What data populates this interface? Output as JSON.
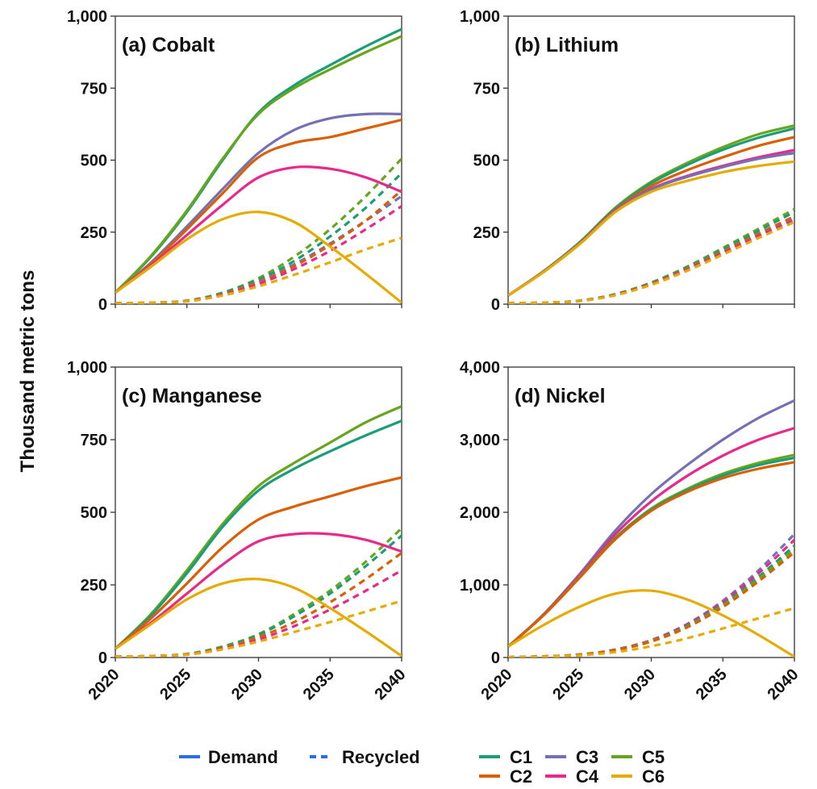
{
  "figure": {
    "ylabel": "Thousand metric tons"
  },
  "legend": {
    "styles": [
      {
        "label": "Demand",
        "dash": "solid"
      },
      {
        "label": "Recycled",
        "dash": "dashed"
      }
    ],
    "scenarios": [
      {
        "label": "C1",
        "color": "#1b9e77"
      },
      {
        "label": "C2",
        "color": "#d95f02"
      },
      {
        "label": "C3",
        "color": "#7570b3"
      },
      {
        "label": "C4",
        "color": "#e7298a"
      },
      {
        "label": "C5",
        "color": "#66a61e"
      },
      {
        "label": "C6",
        "color": "#e6ab02"
      }
    ],
    "style_color": "#2b6de8"
  },
  "chart_data": [
    {
      "type": "line",
      "title": "(a) Cobalt",
      "xlabel": "",
      "ylabel": "Thousand metric tons",
      "xlim": [
        2020,
        2040
      ],
      "ylim": [
        0,
        1000
      ],
      "xticks": [
        "2020",
        "2025",
        "2030",
        "2035",
        "2040"
      ],
      "yticks": [
        "0",
        "250",
        "500",
        "750",
        "1,000"
      ],
      "x": [
        2020,
        2022.5,
        2025,
        2027.5,
        2030,
        2032.5,
        2035,
        2037.5,
        2040
      ],
      "series": [
        {
          "name": "C1",
          "kind": "Demand",
          "values": [
            40,
            165,
            320,
            500,
            665,
            760,
            830,
            895,
            955
          ]
        },
        {
          "name": "C5",
          "kind": "Demand",
          "values": [
            40,
            168,
            325,
            505,
            660,
            750,
            815,
            875,
            930
          ]
        },
        {
          "name": "C3",
          "kind": "Demand",
          "values": [
            40,
            145,
            270,
            400,
            525,
            605,
            645,
            660,
            660
          ]
        },
        {
          "name": "C2",
          "kind": "Demand",
          "values": [
            40,
            140,
            260,
            385,
            510,
            560,
            580,
            610,
            640
          ]
        },
        {
          "name": "C4",
          "kind": "Demand",
          "values": [
            40,
            135,
            240,
            345,
            440,
            475,
            470,
            440,
            390
          ]
        },
        {
          "name": "C6",
          "kind": "Demand",
          "values": [
            40,
            130,
            225,
            295,
            320,
            285,
            200,
            105,
            5
          ]
        },
        {
          "name": "C5",
          "kind": "Recycled",
          "values": [
            3,
            5,
            12,
            40,
            90,
            165,
            260,
            375,
            505
          ]
        },
        {
          "name": "C1",
          "kind": "Recycled",
          "values": [
            3,
            5,
            12,
            38,
            85,
            150,
            235,
            335,
            455
          ]
        },
        {
          "name": "C3",
          "kind": "Recycled",
          "values": [
            3,
            5,
            11,
            35,
            78,
            138,
            210,
            290,
            375
          ]
        },
        {
          "name": "C2",
          "kind": "Recycled",
          "values": [
            3,
            5,
            11,
            34,
            76,
            132,
            205,
            290,
            395
          ]
        },
        {
          "name": "C4",
          "kind": "Recycled",
          "values": [
            3,
            5,
            10,
            32,
            70,
            122,
            185,
            260,
            340
          ]
        },
        {
          "name": "C6",
          "kind": "Recycled",
          "values": [
            3,
            5,
            10,
            30,
            62,
            102,
            145,
            190,
            230
          ]
        }
      ]
    },
    {
      "type": "line",
      "title": "(b) Lithium",
      "xlabel": "",
      "ylabel": "",
      "xlim": [
        2020,
        2040
      ],
      "ylim": [
        0,
        1000
      ],
      "xticks": [
        "2020",
        "2025",
        "2030",
        "2035",
        "2040"
      ],
      "yticks": [
        "0",
        "250",
        "500",
        "750",
        "1,000"
      ],
      "x": [
        2020,
        2022.5,
        2025,
        2027.5,
        2030,
        2032.5,
        2035,
        2037.5,
        2040
      ],
      "series": [
        {
          "name": "C5",
          "kind": "Demand",
          "values": [
            30,
            115,
            215,
            335,
            425,
            490,
            545,
            590,
            620
          ]
        },
        {
          "name": "C1",
          "kind": "Demand",
          "values": [
            30,
            115,
            214,
            332,
            420,
            483,
            536,
            578,
            610
          ]
        },
        {
          "name": "C2",
          "kind": "Demand",
          "values": [
            30,
            114,
            212,
            328,
            410,
            465,
            510,
            550,
            580
          ]
        },
        {
          "name": "C4",
          "kind": "Demand",
          "values": [
            30,
            113,
            210,
            325,
            400,
            445,
            480,
            510,
            535
          ]
        },
        {
          "name": "C3",
          "kind": "Demand",
          "values": [
            30,
            113,
            210,
            323,
            398,
            442,
            476,
            505,
            525
          ]
        },
        {
          "name": "C6",
          "kind": "Demand",
          "values": [
            30,
            112,
            208,
            320,
            390,
            428,
            458,
            480,
            495
          ]
        },
        {
          "name": "C5",
          "kind": "Recycled",
          "values": [
            3,
            5,
            12,
            35,
            75,
            130,
            195,
            262,
            330
          ]
        },
        {
          "name": "C1",
          "kind": "Recycled",
          "values": [
            3,
            5,
            12,
            34,
            73,
            127,
            190,
            255,
            320
          ]
        },
        {
          "name": "C2",
          "kind": "Recycled",
          "values": [
            3,
            5,
            11,
            33,
            71,
            123,
            183,
            245,
            305
          ]
        },
        {
          "name": "C3",
          "kind": "Recycled",
          "values": [
            3,
            5,
            11,
            32,
            69,
            120,
            178,
            238,
            295
          ]
        },
        {
          "name": "C4",
          "kind": "Recycled",
          "values": [
            3,
            5,
            11,
            32,
            69,
            119,
            177,
            236,
            292
          ]
        },
        {
          "name": "C6",
          "kind": "Recycled",
          "values": [
            3,
            5,
            11,
            31,
            67,
            116,
            172,
            230,
            285
          ]
        }
      ]
    },
    {
      "type": "line",
      "title": "(c) Manganese",
      "xlabel": "",
      "ylabel": "",
      "xlim": [
        2020,
        2040
      ],
      "ylim": [
        0,
        1000
      ],
      "xticks": [
        "2020",
        "2025",
        "2030",
        "2035",
        "2040"
      ],
      "yticks": [
        "0",
        "250",
        "500",
        "750",
        "1,000"
      ],
      "x": [
        2020,
        2022.5,
        2025,
        2027.5,
        2030,
        2032.5,
        2035,
        2037.5,
        2040
      ],
      "series": [
        {
          "name": "C5",
          "kind": "Demand",
          "values": [
            30,
            150,
            300,
            460,
            590,
            670,
            740,
            810,
            865
          ]
        },
        {
          "name": "C1",
          "kind": "Demand",
          "values": [
            30,
            145,
            290,
            450,
            575,
            650,
            710,
            765,
            815
          ]
        },
        {
          "name": "C2",
          "kind": "Demand",
          "values": [
            30,
            135,
            255,
            380,
            475,
            520,
            555,
            590,
            620
          ]
        },
        {
          "name": "C4",
          "kind": "Demand",
          "values": [
            30,
            120,
            220,
            320,
            400,
            425,
            425,
            405,
            365
          ]
        },
        {
          "name": "C6",
          "kind": "Demand",
          "values": [
            30,
            115,
            200,
            255,
            270,
            240,
            170,
            90,
            5
          ]
        },
        {
          "name": "C5",
          "kind": "Recycled",
          "values": [
            3,
            5,
            12,
            38,
            80,
            150,
            230,
            330,
            445
          ]
        },
        {
          "name": "C1",
          "kind": "Recycled",
          "values": [
            3,
            5,
            12,
            36,
            78,
            142,
            220,
            315,
            420
          ]
        },
        {
          "name": "C2",
          "kind": "Recycled",
          "values": [
            3,
            5,
            11,
            33,
            70,
            122,
            190,
            270,
            360
          ]
        },
        {
          "name": "C4",
          "kind": "Recycled",
          "values": [
            3,
            5,
            10,
            30,
            62,
            108,
            165,
            230,
            300
          ]
        },
        {
          "name": "C6",
          "kind": "Recycled",
          "values": [
            3,
            5,
            10,
            28,
            55,
            88,
            122,
            158,
            195
          ]
        }
      ]
    },
    {
      "type": "line",
      "title": "(d) Nickel",
      "xlabel": "",
      "ylabel": "",
      "xlim": [
        2020,
        2040
      ],
      "ylim": [
        0,
        4000
      ],
      "xticks": [
        "2020",
        "2025",
        "2030",
        "2035",
        "2040"
      ],
      "yticks": [
        "0",
        "1,000",
        "2,000",
        "3,000",
        "4,000"
      ],
      "x": [
        2020,
        2022.5,
        2025,
        2027.5,
        2030,
        2032.5,
        2035,
        2037.5,
        2040
      ],
      "series": [
        {
          "name": "C3",
          "kind": "Demand",
          "values": [
            150,
            600,
            1150,
            1750,
            2250,
            2650,
            3000,
            3300,
            3540
          ]
        },
        {
          "name": "C4",
          "kind": "Demand",
          "values": [
            150,
            595,
            1130,
            1700,
            2150,
            2500,
            2780,
            3000,
            3160
          ]
        },
        {
          "name": "C5",
          "kind": "Demand",
          "values": [
            150,
            590,
            1110,
            1650,
            2050,
            2320,
            2530,
            2680,
            2790
          ]
        },
        {
          "name": "C1",
          "kind": "Demand",
          "values": [
            150,
            588,
            1105,
            1640,
            2035,
            2300,
            2505,
            2650,
            2750
          ]
        },
        {
          "name": "C2",
          "kind": "Demand",
          "values": [
            150,
            585,
            1100,
            1630,
            2020,
            2280,
            2470,
            2600,
            2690
          ]
        },
        {
          "name": "C6",
          "kind": "Demand",
          "values": [
            150,
            450,
            700,
            880,
            920,
            800,
            580,
            310,
            10
          ]
        },
        {
          "name": "C3",
          "kind": "Recycled",
          "values": [
            5,
            15,
            40,
            110,
            240,
            460,
            780,
            1200,
            1700
          ]
        },
        {
          "name": "C4",
          "kind": "Recycled",
          "values": [
            5,
            15,
            40,
            108,
            235,
            450,
            760,
            1160,
            1620
          ]
        },
        {
          "name": "C1",
          "kind": "Recycled",
          "values": [
            5,
            15,
            38,
            105,
            228,
            435,
            730,
            1110,
            1540
          ]
        },
        {
          "name": "C5",
          "kind": "Recycled",
          "values": [
            5,
            15,
            38,
            104,
            225,
            425,
            715,
            1080,
            1500
          ]
        },
        {
          "name": "C2",
          "kind": "Recycled",
          "values": [
            5,
            15,
            37,
            102,
            220,
            415,
            695,
            1050,
            1450
          ]
        },
        {
          "name": "C6",
          "kind": "Recycled",
          "values": [
            5,
            12,
            30,
            75,
            155,
            265,
            400,
            540,
            680
          ]
        }
      ]
    }
  ]
}
